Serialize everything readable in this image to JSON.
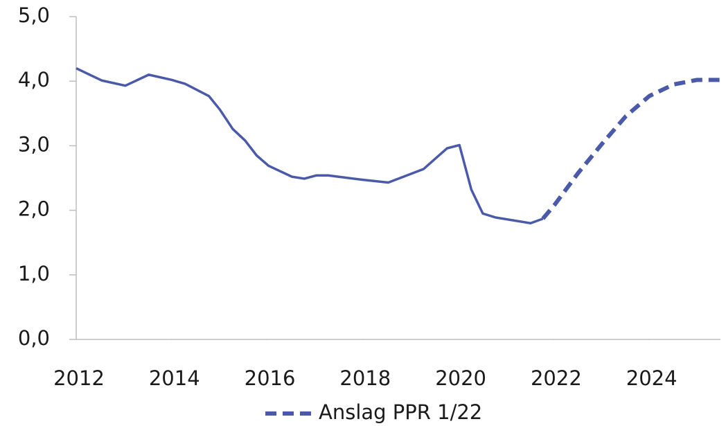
{
  "chart_data": {
    "type": "line",
    "series": [
      {
        "color": "#4a5aa8",
        "dashed": false,
        "x": [
          2012.0,
          2012.54,
          2013.03,
          2013.52,
          2014.0,
          2014.28,
          2014.78,
          2015.01,
          2015.28,
          2015.54,
          2015.78,
          2016.03,
          2016.52,
          2016.78,
          2017.03,
          2017.28,
          2018.03,
          2018.54,
          2019.28,
          2019.77,
          2020.03,
          2020.28,
          2020.52,
          2020.78,
          2021.52,
          2021.78
        ],
        "values": [
          4.2,
          4.01,
          3.93,
          4.1,
          4.02,
          3.96,
          3.77,
          3.56,
          3.26,
          3.08,
          2.85,
          2.69,
          2.52,
          2.49,
          2.54,
          2.54,
          2.47,
          2.43,
          2.64,
          2.96,
          3.01,
          2.32,
          1.95,
          1.89,
          1.8,
          1.87
        ]
      },
      {
        "name": "Anslag PPR 1/22",
        "color": "#4a5aa8",
        "dashed": true,
        "x": [
          2021.78,
          2022.03,
          2022.52,
          2023.03,
          2023.52,
          2024.01,
          2024.52,
          2025.01,
          2025.48
        ],
        "values": [
          1.87,
          2.09,
          2.58,
          3.04,
          3.46,
          3.77,
          3.95,
          4.02,
          4.02
        ]
      }
    ],
    "xlim": [
      2012,
      2025.5
    ],
    "xticks": [
      2012,
      2014,
      2016,
      2018,
      2020,
      2022,
      2024
    ],
    "ylim": [
      0,
      5
    ],
    "yticks": [
      {
        "value": 0,
        "label": "0,0"
      },
      {
        "value": 1,
        "label": "1,0"
      },
      {
        "value": 2,
        "label": "2,0"
      },
      {
        "value": 3,
        "label": "3,0"
      },
      {
        "value": 4,
        "label": "4,0"
      },
      {
        "value": 5,
        "label": "5,0"
      }
    ]
  }
}
